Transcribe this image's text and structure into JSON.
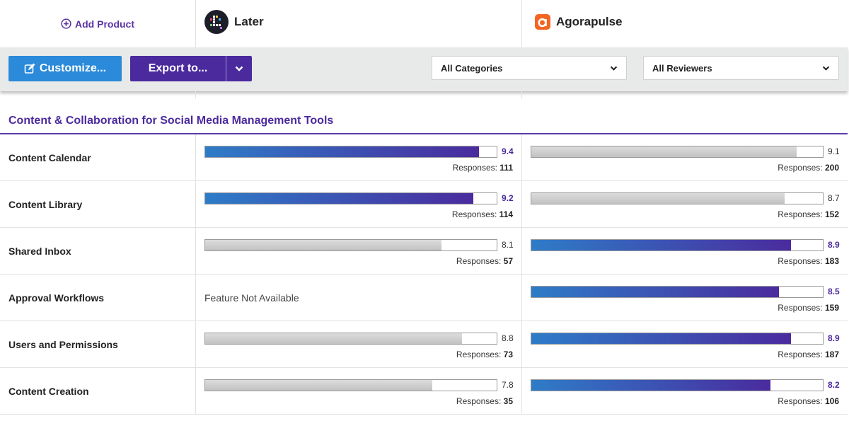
{
  "header": {
    "add_product_label": "Add Product",
    "products": [
      {
        "name": "Later",
        "logo_icon": "later-logo"
      },
      {
        "name": "Agorapulse",
        "logo_icon": "agorapulse-logo"
      }
    ]
  },
  "toolbar": {
    "customize_label": "Customize...",
    "export_label": "Export to...",
    "category_select": "All Categories",
    "reviewer_select": "All Reviewers"
  },
  "section": {
    "title": "Content & Collaboration for Social Media Management Tools"
  },
  "features": [
    {
      "label": "Content Calendar",
      "later": {
        "score": "9.4",
        "responses_label": "Responses:",
        "responses": "111",
        "highlight": true
      },
      "agora": {
        "score": "9.1",
        "responses_label": "Responses:",
        "responses": "200",
        "highlight": false
      }
    },
    {
      "label": "Content Library",
      "later": {
        "score": "9.2",
        "responses_label": "Responses:",
        "responses": "114",
        "highlight": true
      },
      "agora": {
        "score": "8.7",
        "responses_label": "Responses:",
        "responses": "152",
        "highlight": false
      }
    },
    {
      "label": "Shared Inbox",
      "later": {
        "score": "8.1",
        "responses_label": "Responses:",
        "responses": "57",
        "highlight": false
      },
      "agora": {
        "score": "8.9",
        "responses_label": "Responses:",
        "responses": "183",
        "highlight": true
      }
    },
    {
      "label": "Approval Workflows",
      "later": {
        "na": "Feature Not Available"
      },
      "agora": {
        "score": "8.5",
        "responses_label": "Responses:",
        "responses": "159",
        "highlight": true
      }
    },
    {
      "label": "Users and Permissions",
      "later": {
        "score": "8.8",
        "responses_label": "Responses:",
        "responses": "73",
        "highlight": false
      },
      "agora": {
        "score": "8.9",
        "responses_label": "Responses:",
        "responses": "187",
        "highlight": true
      }
    },
    {
      "label": "Content Creation",
      "later": {
        "score": "7.8",
        "responses_label": "Responses:",
        "responses": "35",
        "highlight": false
      },
      "agora": {
        "score": "8.2",
        "responses_label": "Responses:",
        "responses": "106",
        "highlight": true
      }
    }
  ],
  "colors": {
    "accent_purple": "#4b2a9e",
    "accent_blue": "#2b8ad9",
    "agorapulse_orange": "#f26522"
  }
}
